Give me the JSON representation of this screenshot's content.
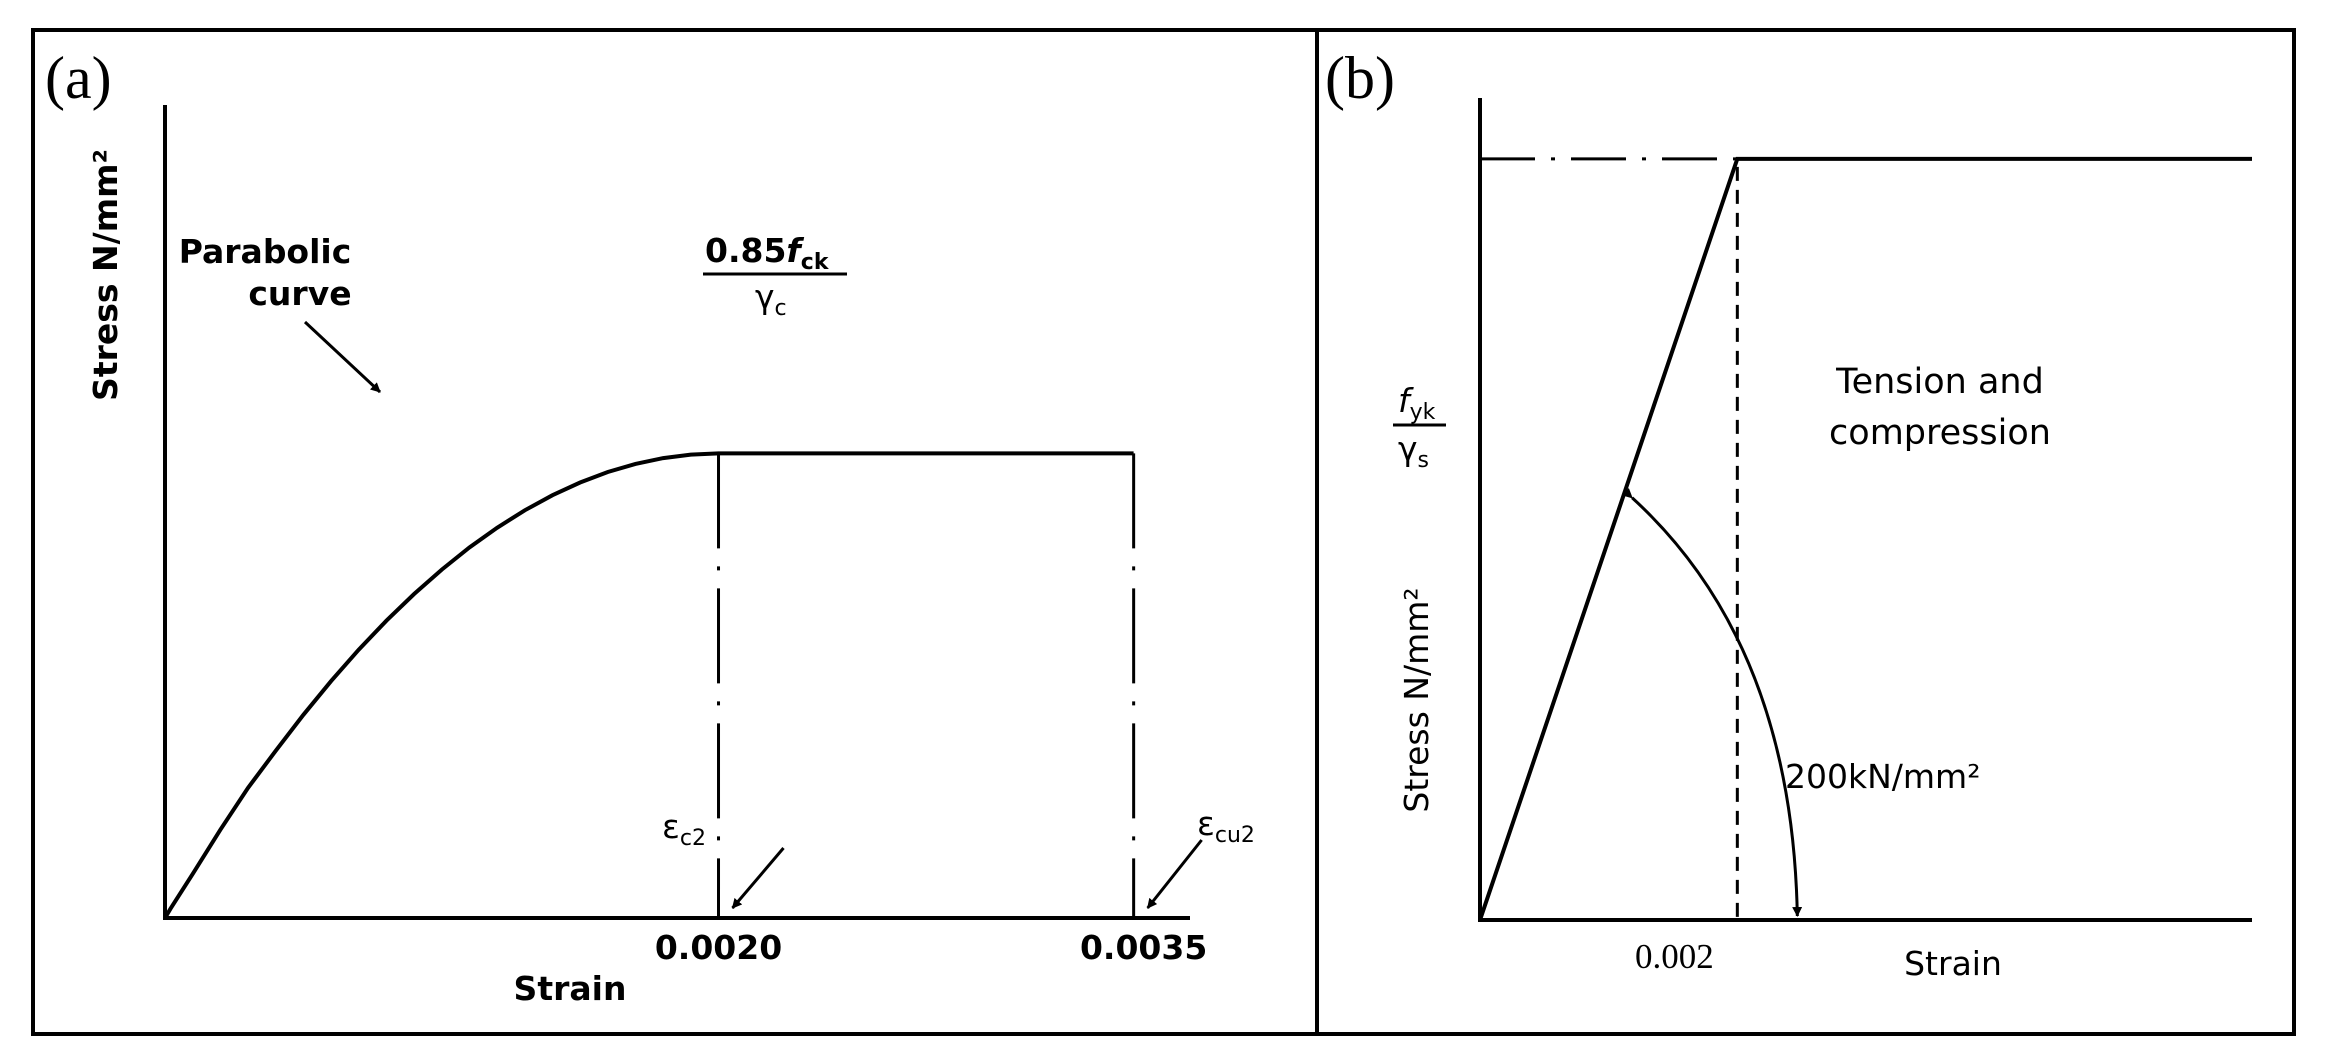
{
  "chart_data": [
    {
      "type": "line",
      "panel_label": "(a)",
      "xlabel": "Strain",
      "ylabel": "Stress N/mm²",
      "x_ticks": [
        "0.0020",
        "0.0035"
      ],
      "xlim": [
        0,
        0.0037
      ],
      "ylim": [
        0,
        1.75
      ],
      "grid": false,
      "series": [
        {
          "x": [
            0,
            2e-05,
            0.0001,
            0.0002,
            0.0003,
            0.0004,
            0.0005,
            0.0006,
            0.0007,
            0.0008,
            0.0009,
            0.001,
            0.0011,
            0.0012,
            0.0013,
            0.0014,
            0.0015,
            0.0016,
            0.0017,
            0.0018,
            0.0019,
            0.002,
            0.0035
          ],
          "y": [
            0,
            0.02,
            0.095,
            0.19,
            0.28,
            0.36,
            0.4375,
            0.51,
            0.5775,
            0.64,
            0.6975,
            0.75,
            0.7975,
            0.84,
            0.8775,
            0.91,
            0.9375,
            0.96,
            0.9775,
            0.99,
            0.9975,
            1.0,
            1.0
          ]
        }
      ],
      "annotations": {
        "curve_label_line1": "Parabolic",
        "curve_label_line2": "curve",
        "plateau_numerator_coef": "0.85",
        "plateau_numerator_f": "f",
        "plateau_numerator_sub": "ck",
        "plateau_denominator_gamma": "γ",
        "plateau_denominator_sub": "c",
        "eps_c2_symbol": "ε",
        "eps_c2_sub": "c2",
        "eps_cu2_symbol": "ε",
        "eps_cu2_sub": "cu2"
      }
    },
    {
      "type": "line",
      "panel_label": "(b)",
      "xlabel": "Strain",
      "ylabel": "Stress N/mm²",
      "x_ticks": [
        "0.002"
      ],
      "xlim": [
        0,
        0.006
      ],
      "ylim": [
        0,
        1.08
      ],
      "grid": false,
      "series": [
        {
          "x": [
            0,
            0.002,
            0.006
          ],
          "y": [
            0,
            1.0,
            1.0
          ]
        }
      ],
      "annotations": {
        "yield_f": "f",
        "yield_f_sub": "yk",
        "yield_gamma": "γ",
        "yield_gamma_sub": "s",
        "region_line1": "Tension and",
        "region_line2": "compression",
        "modulus": "200kN/mm²"
      }
    }
  ]
}
